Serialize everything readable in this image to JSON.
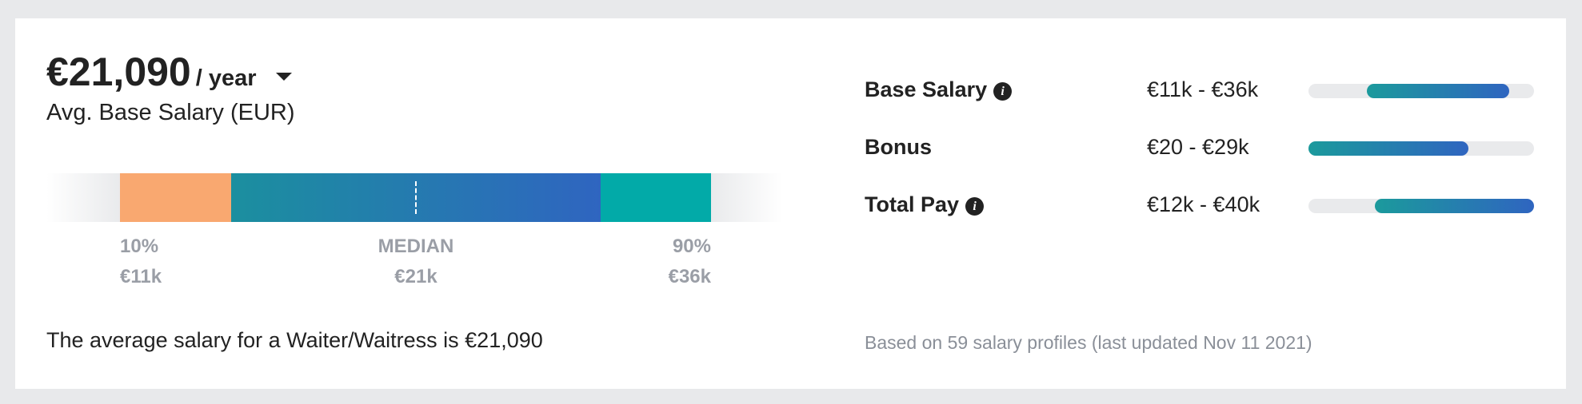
{
  "header": {
    "amount": "€21,090",
    "period": "/ year",
    "subtitle": "Avg. Base Salary (EUR)"
  },
  "distribution": {
    "low": {
      "label": "10%",
      "value": "€11k"
    },
    "median": {
      "label": "MEDIAN",
      "value": "€21k"
    },
    "high": {
      "label": "90%",
      "value": "€36k"
    }
  },
  "summary": "The average salary for a Waiter/Waitress is €21,090",
  "rows": [
    {
      "label": "Base Salary",
      "range": "€11k - €36k"
    },
    {
      "label": "Bonus",
      "range": "€20 - €29k"
    },
    {
      "label": "Total Pay",
      "range": "€12k - €40k"
    }
  ],
  "footnote": "Based on 59 salary profiles (last updated Nov 11 2021)"
}
